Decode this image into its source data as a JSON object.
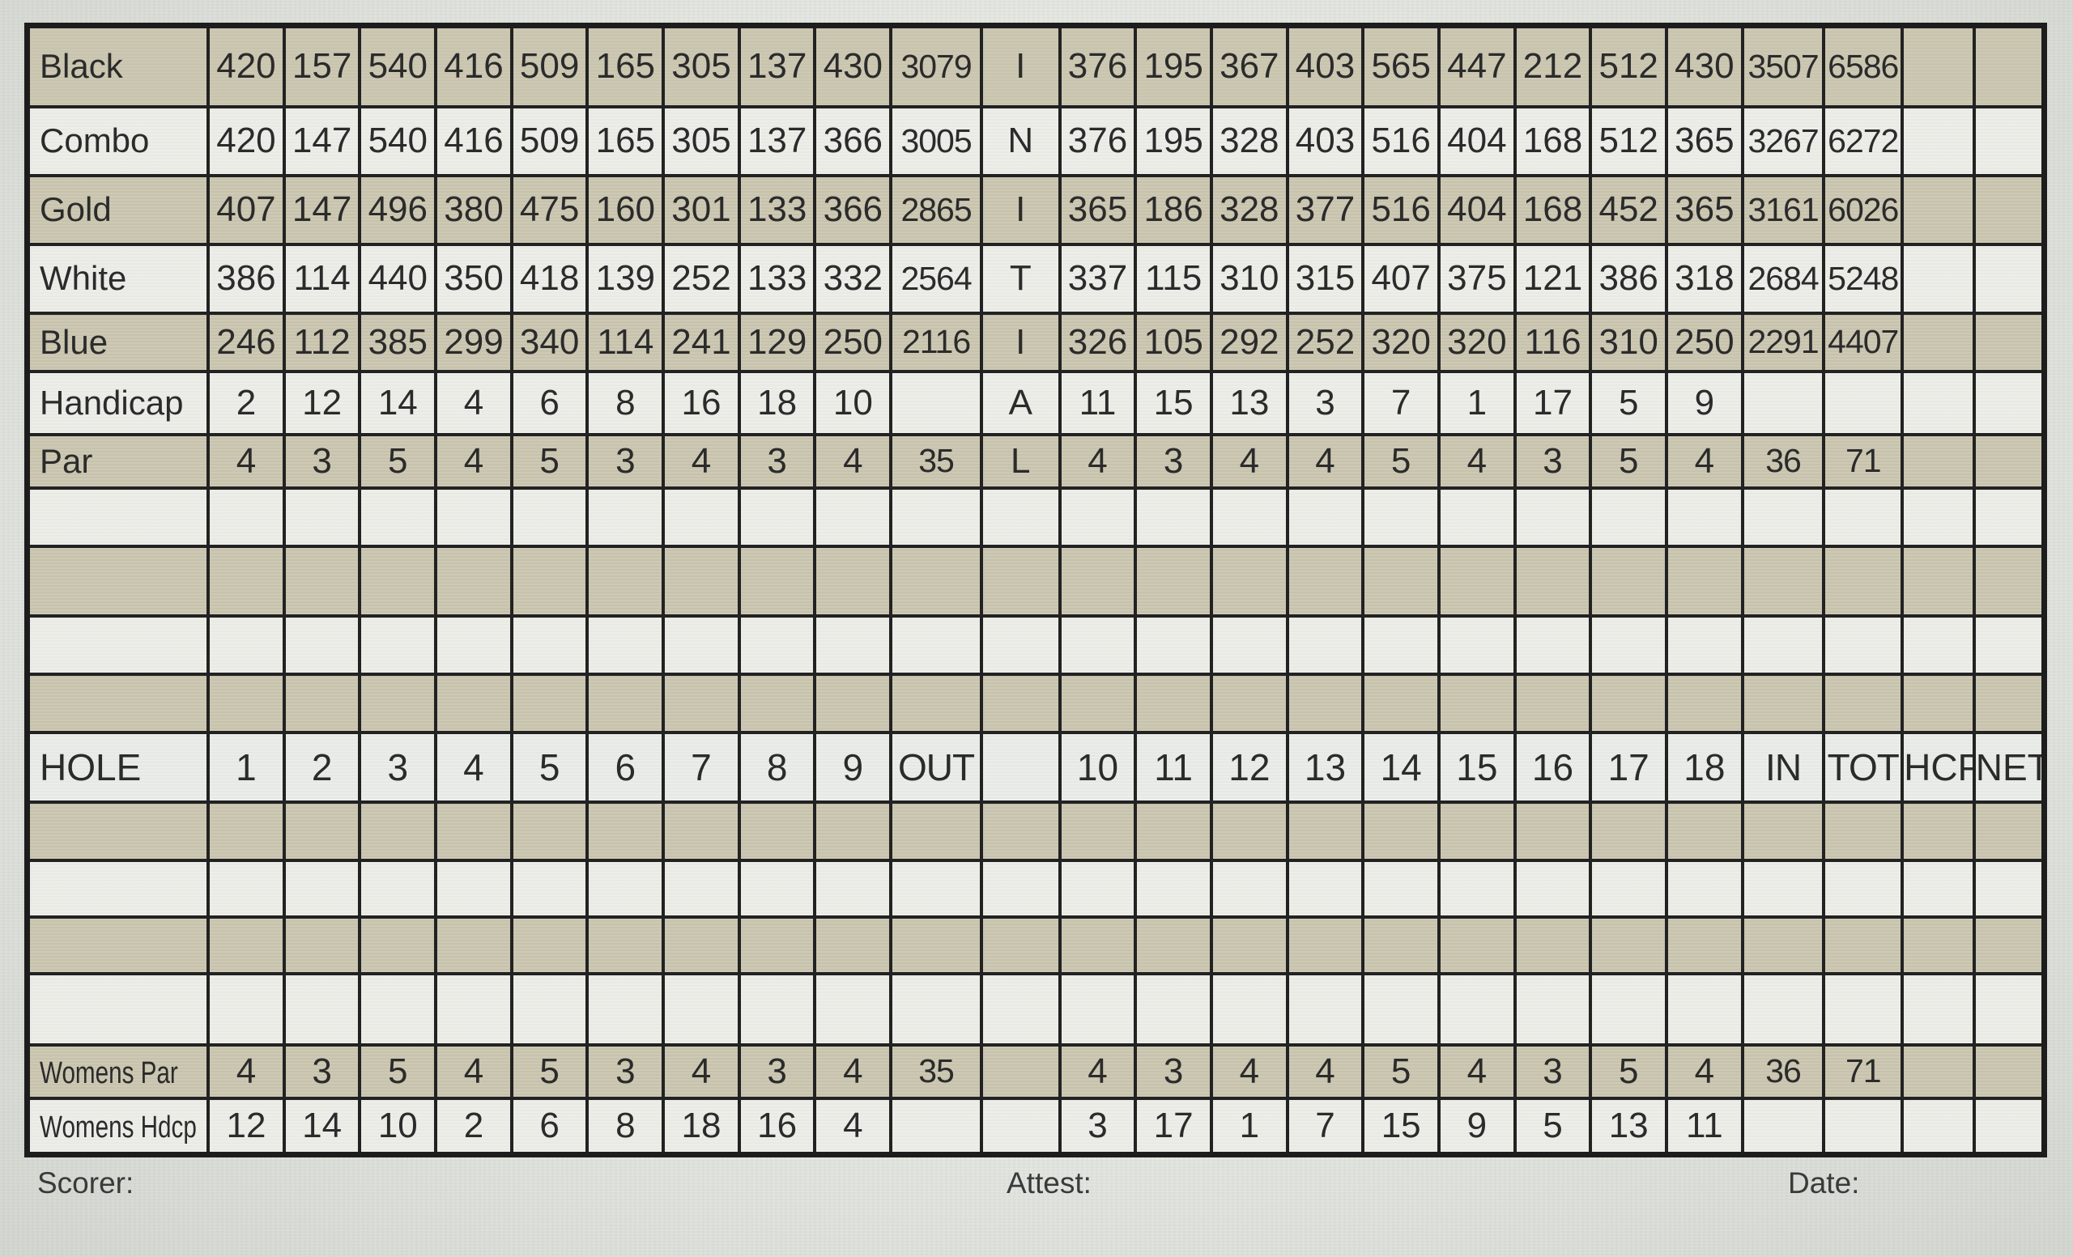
{
  "scorecard": {
    "hole_header": {
      "label": "HOLE",
      "front": [
        "1",
        "2",
        "3",
        "4",
        "5",
        "6",
        "7",
        "8",
        "9"
      ],
      "out": "OUT",
      "back": [
        "10",
        "11",
        "12",
        "13",
        "14",
        "15",
        "16",
        "17",
        "18"
      ],
      "in": "IN",
      "tot": "TOT",
      "hcp": "HCP",
      "net": "NET"
    },
    "initial_word": "INITIAL",
    "tees": [
      {
        "label": "Black",
        "letter": "I",
        "front": [
          420,
          157,
          540,
          416,
          509,
          165,
          305,
          137,
          430
        ],
        "out": 3079,
        "back": [
          376,
          195,
          367,
          403,
          565,
          447,
          212,
          512,
          430
        ],
        "in": 3507,
        "total": 6586
      },
      {
        "label": "Combo",
        "letter": "N",
        "front": [
          420,
          147,
          540,
          416,
          509,
          165,
          305,
          137,
          366
        ],
        "out": 3005,
        "back": [
          376,
          195,
          328,
          403,
          516,
          404,
          168,
          512,
          365
        ],
        "in": 3267,
        "total": 6272
      },
      {
        "label": "Gold",
        "letter": "I",
        "front": [
          407,
          147,
          496,
          380,
          475,
          160,
          301,
          133,
          366
        ],
        "out": 2865,
        "back": [
          365,
          186,
          328,
          377,
          516,
          404,
          168,
          452,
          365
        ],
        "in": 3161,
        "total": 6026
      },
      {
        "label": "White",
        "letter": "T",
        "front": [
          386,
          114,
          440,
          350,
          418,
          139,
          252,
          133,
          332
        ],
        "out": 2564,
        "back": [
          337,
          115,
          310,
          315,
          407,
          375,
          121,
          386,
          318
        ],
        "in": 2684,
        "total": 5248
      },
      {
        "label": "Blue",
        "letter": "I",
        "front": [
          246,
          112,
          385,
          299,
          340,
          114,
          241,
          129,
          250
        ],
        "out": 2116,
        "back": [
          326,
          105,
          292,
          252,
          320,
          320,
          116,
          310,
          250
        ],
        "in": 2291,
        "total": 4407
      }
    ],
    "handicap": {
      "label": "Handicap",
      "letter": "A",
      "front": [
        2,
        12,
        14,
        4,
        6,
        8,
        16,
        18,
        10
      ],
      "back": [
        11,
        15,
        13,
        3,
        7,
        1,
        17,
        5,
        9
      ]
    },
    "par": {
      "label": "Par",
      "letter": "L",
      "front": [
        4,
        3,
        5,
        4,
        5,
        3,
        4,
        3,
        4
      ],
      "out": 35,
      "back": [
        4,
        3,
        4,
        4,
        5,
        4,
        3,
        5,
        4
      ],
      "in": 36,
      "total": 71
    },
    "womens_par": {
      "label": "Womens Par",
      "front": [
        4,
        3,
        5,
        4,
        5,
        3,
        4,
        3,
        4
      ],
      "out": 35,
      "back": [
        4,
        3,
        4,
        4,
        5,
        4,
        3,
        5,
        4
      ],
      "in": 36,
      "total": 71
    },
    "womens_hdcp": {
      "label": "Womens Hdcp",
      "front": [
        12,
        14,
        10,
        2,
        6,
        8,
        18,
        16,
        4
      ],
      "back": [
        3,
        17,
        1,
        7,
        15,
        9,
        5,
        13,
        11
      ]
    },
    "footer": {
      "scorer": "Scorer:",
      "attest": "Attest:",
      "date": "Date:"
    }
  }
}
